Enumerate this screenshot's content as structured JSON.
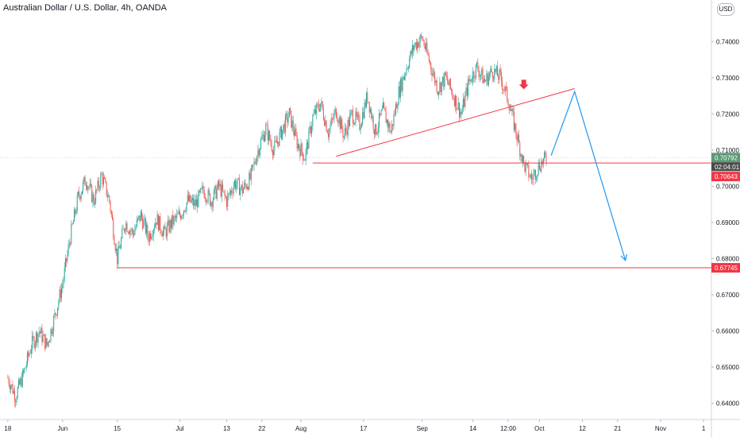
{
  "header": {
    "title": "Australian Dollar / U.S. Dollar, 4h, OANDA",
    "currency_button": "USD"
  },
  "colors": {
    "up": "#26a69a",
    "down": "#ef5350",
    "line_red": "#f23645",
    "arrow_blue": "#2196f3",
    "price_green": "#5b9a74",
    "price_red": "#f23645",
    "timer_dark": "#4a4a4a",
    "axis": "#131722",
    "current_line": "#b2b5be"
  },
  "chart_data": {
    "type": "candlestick",
    "title": "Australian Dollar / U.S. Dollar, 4h, OANDA",
    "ylim": [
      0.6355,
      0.7515
    ],
    "y_ticks": [
      {
        "value": 0.74,
        "label": "0.74000"
      },
      {
        "value": 0.73,
        "label": "0.73000"
      },
      {
        "value": 0.72,
        "label": "0.72000"
      },
      {
        "value": 0.71,
        "label": "0.71000"
      },
      {
        "value": 0.7,
        "label": "0.70000"
      },
      {
        "value": 0.69,
        "label": "0.69000"
      },
      {
        "value": 0.68,
        "label": "0.68000"
      },
      {
        "value": 0.67,
        "label": "0.67000"
      },
      {
        "value": 0.66,
        "label": "0.66000"
      },
      {
        "value": 0.65,
        "label": "0.65000"
      },
      {
        "value": 0.64,
        "label": "0.64000"
      }
    ],
    "x_ticks": [
      {
        "label": "18",
        "day": 0
      },
      {
        "label": "Jun",
        "day": 14
      },
      {
        "label": "15",
        "day": 28
      },
      {
        "label": "Jul",
        "day": 44
      },
      {
        "label": "13",
        "day": 56
      },
      {
        "label": "22",
        "day": 65
      },
      {
        "label": "Aug",
        "day": 75
      },
      {
        "label": "17",
        "day": 91
      },
      {
        "label": "Sep",
        "day": 106
      },
      {
        "label": "14",
        "day": 119
      },
      {
        "label": "12:00",
        "day": 128
      },
      {
        "label": "Oct",
        "day": 136
      },
      {
        "label": "12",
        "day": 147
      },
      {
        "label": "21",
        "day": 156
      },
      {
        "label": "Nov",
        "day": 167
      },
      {
        "label": "1",
        "day": 178
      }
    ],
    "day_range": [
      -2,
      180
    ],
    "price_path": [
      [
        0,
        0.647
      ],
      [
        2,
        0.642
      ],
      [
        4,
        0.648
      ],
      [
        6,
        0.656
      ],
      [
        8,
        0.66
      ],
      [
        10,
        0.656
      ],
      [
        12,
        0.664
      ],
      [
        14,
        0.673
      ],
      [
        16,
        0.686
      ],
      [
        18,
        0.697
      ],
      [
        20,
        0.702
      ],
      [
        22,
        0.696
      ],
      [
        24,
        0.703
      ],
      [
        26,
        0.696
      ],
      [
        28,
        0.68
      ],
      [
        30,
        0.69
      ],
      [
        32,
        0.687
      ],
      [
        34,
        0.692
      ],
      [
        36,
        0.686
      ],
      [
        38,
        0.691
      ],
      [
        40,
        0.687
      ],
      [
        42,
        0.69
      ],
      [
        44,
        0.692
      ],
      [
        46,
        0.696
      ],
      [
        48,
        0.695
      ],
      [
        50,
        0.699
      ],
      [
        52,
        0.696
      ],
      [
        54,
        0.7
      ],
      [
        56,
        0.696
      ],
      [
        58,
        0.701
      ],
      [
        60,
        0.699
      ],
      [
        62,
        0.702
      ],
      [
        64,
        0.71
      ],
      [
        66,
        0.716
      ],
      [
        68,
        0.71
      ],
      [
        70,
        0.715
      ],
      [
        72,
        0.72
      ],
      [
        74,
        0.712
      ],
      [
        76,
        0.708
      ],
      [
        78,
        0.719
      ],
      [
        80,
        0.723
      ],
      [
        82,
        0.715
      ],
      [
        84,
        0.721
      ],
      [
        86,
        0.714
      ],
      [
        88,
        0.72
      ],
      [
        90,
        0.717
      ],
      [
        92,
        0.725
      ],
      [
        94,
        0.715
      ],
      [
        96,
        0.721
      ],
      [
        98,
        0.715
      ],
      [
        100,
        0.726
      ],
      [
        102,
        0.733
      ],
      [
        104,
        0.739
      ],
      [
        106,
        0.741
      ],
      [
        108,
        0.734
      ],
      [
        110,
        0.727
      ],
      [
        112,
        0.73
      ],
      [
        114,
        0.725
      ],
      [
        116,
        0.72
      ],
      [
        118,
        0.729
      ],
      [
        120,
        0.733
      ],
      [
        122,
        0.729
      ],
      [
        124,
        0.732
      ],
      [
        126,
        0.73
      ],
      [
        128,
        0.724
      ],
      [
        130,
        0.715
      ],
      [
        132,
        0.706
      ],
      [
        134,
        0.702
      ],
      [
        136,
        0.706
      ],
      [
        138,
        0.7079
      ]
    ],
    "horizontal_levels": [
      {
        "value": 0.70643,
        "day_start": 78
      },
      {
        "value": 0.67745,
        "day_start": 28
      }
    ],
    "trendline": {
      "from_day": 84,
      "from_value": 0.7083,
      "to_day": 145,
      "to_value": 0.727
    },
    "projection": [
      {
        "day": 139,
        "value": 0.7085
      },
      {
        "day": 145,
        "value": 0.7262
      },
      {
        "day": 158,
        "value": 0.6795
      }
    ],
    "sell_marker": {
      "day": 132,
      "value": 0.7268
    },
    "price_tags": [
      {
        "value": 0.70792,
        "label": "0.70792",
        "kind": "last"
      },
      {
        "value": 0.70643,
        "label": "0.70643",
        "kind": "level"
      },
      {
        "value": 0.67745,
        "label": "0.67745",
        "kind": "level"
      }
    ],
    "countdown": "02:04:01"
  }
}
